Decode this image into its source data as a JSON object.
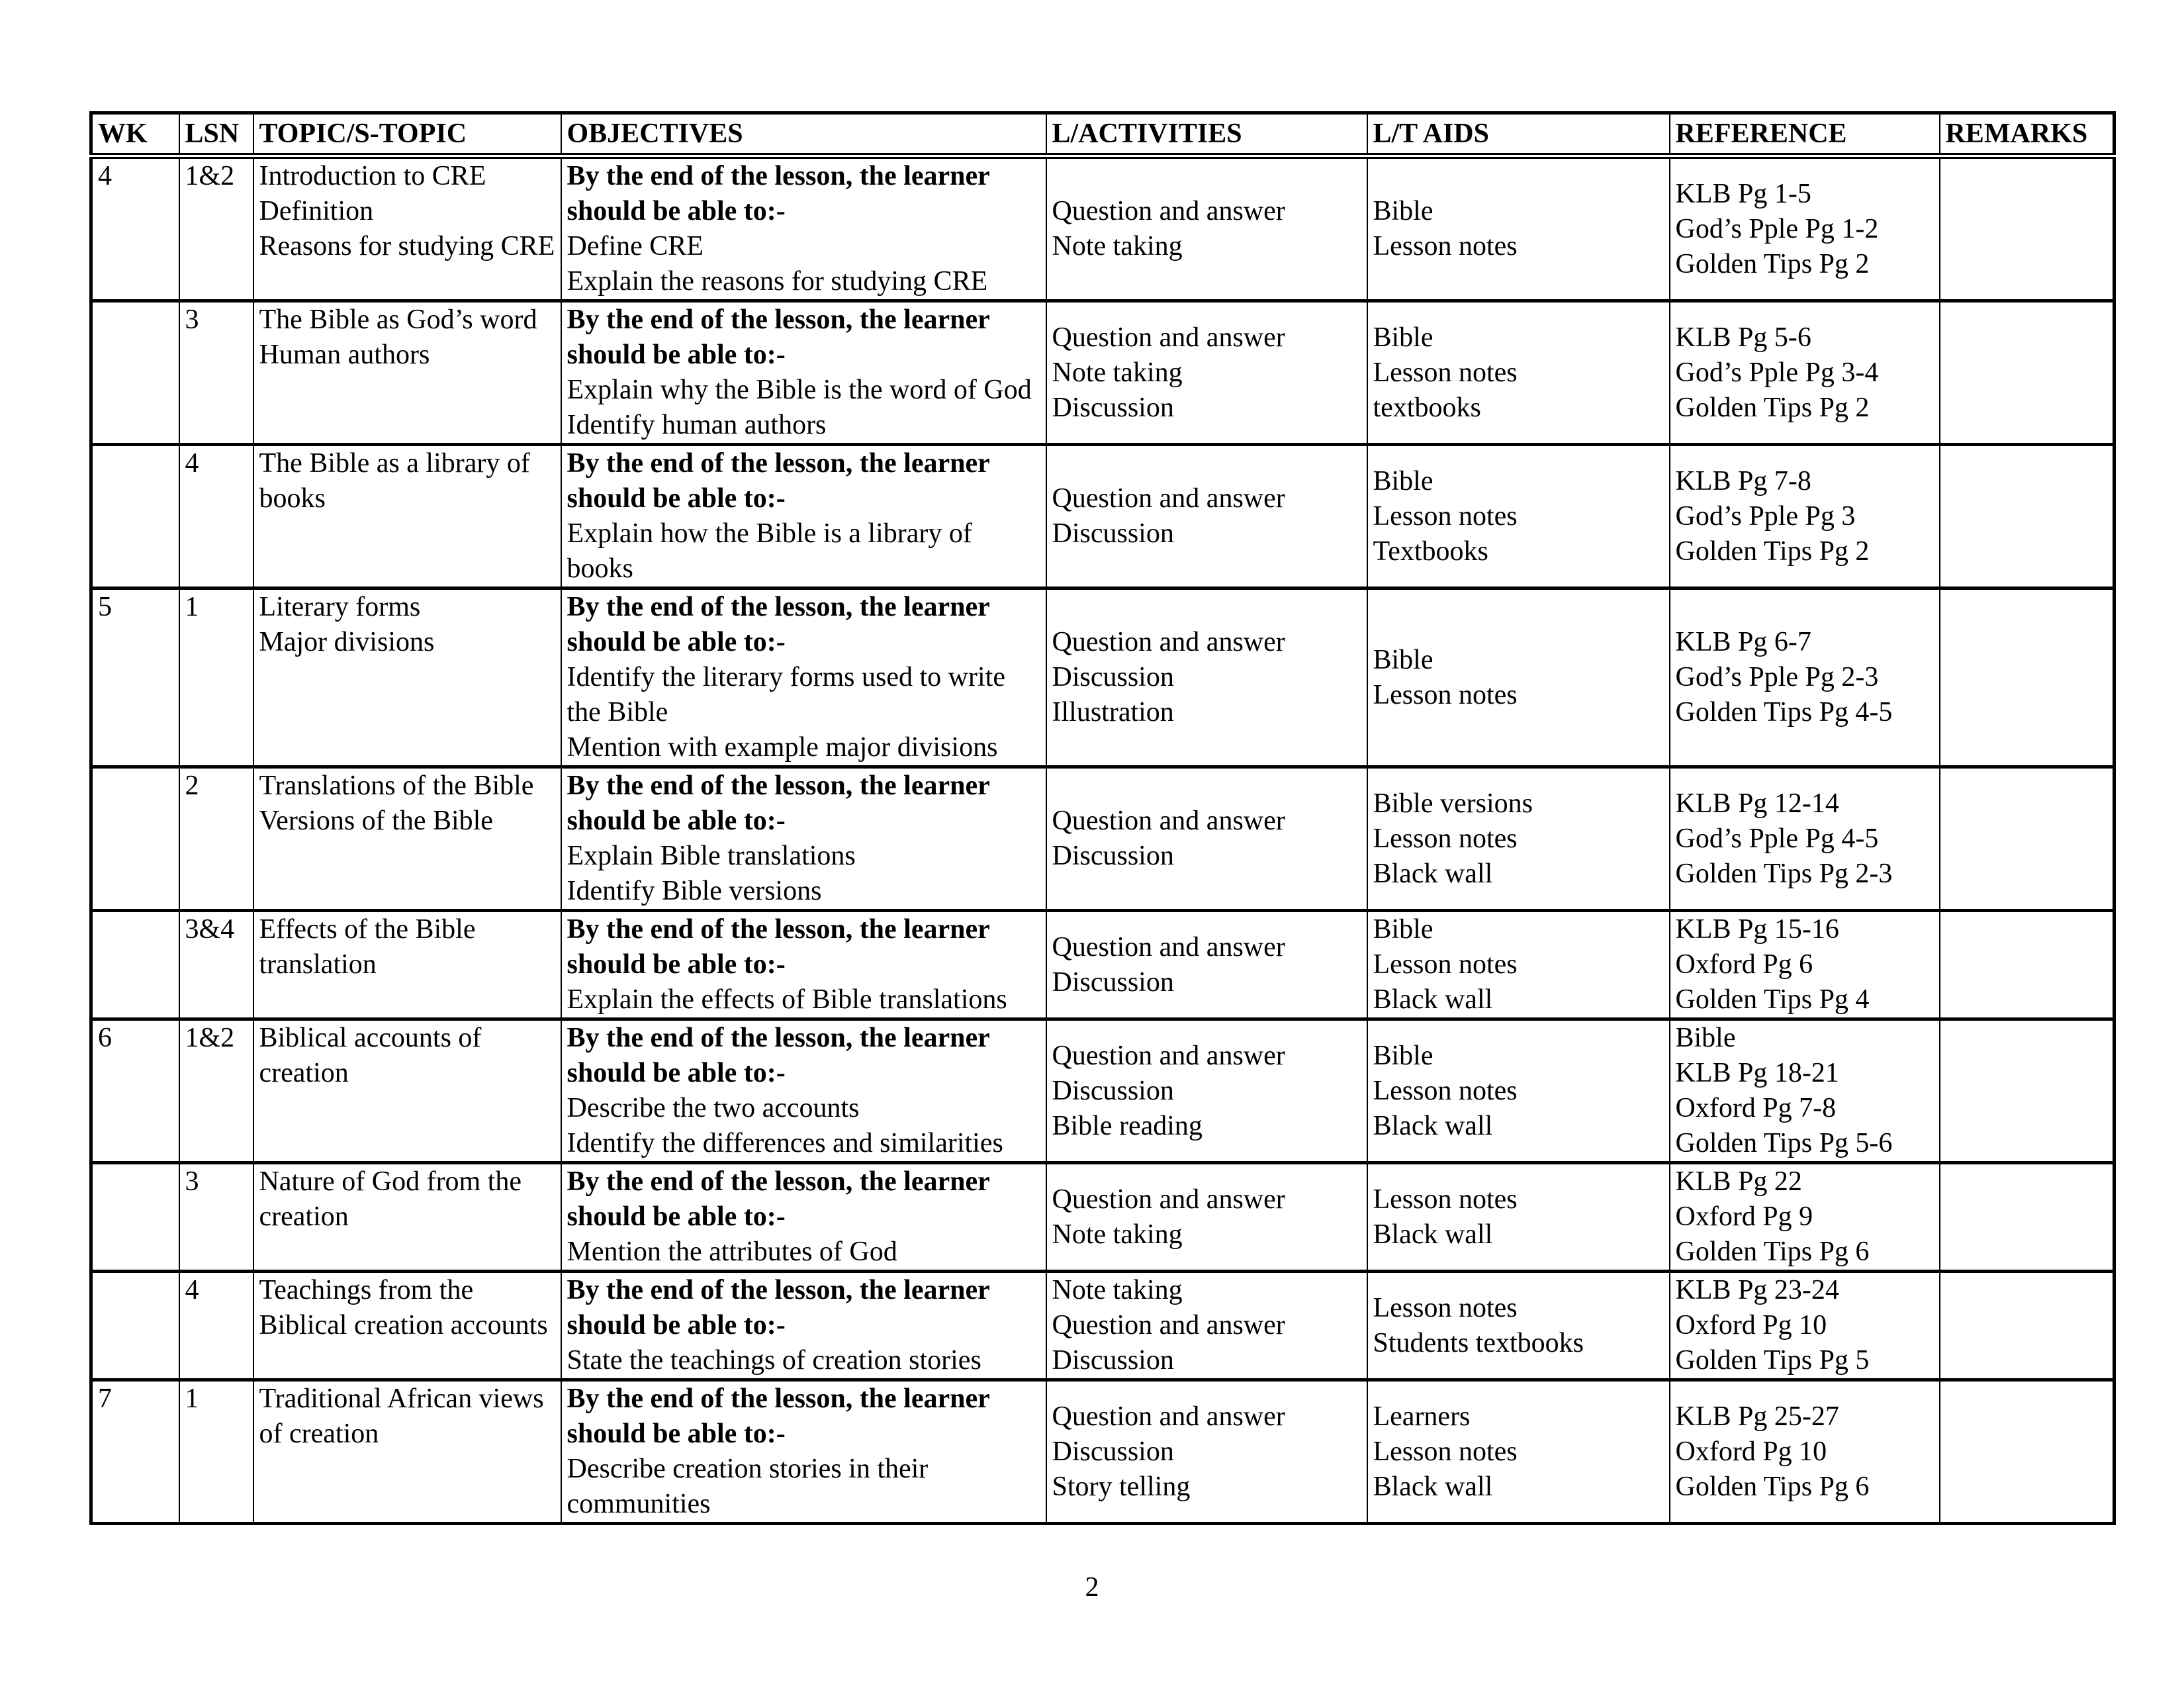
{
  "page": {
    "number": "2"
  },
  "table": {
    "headers": [
      "WK",
      "LSN",
      "TOPIC/S-TOPIC",
      "OBJECTIVES",
      "L/ACTIVITIES",
      "L/T AIDS",
      "REFERENCE",
      "REMARKS"
    ],
    "objectives_lead": "By the end of the lesson, the learner should be able to:-",
    "rows": [
      {
        "wk": "4",
        "lsn": "1&2",
        "topic": [
          "Introduction to CRE",
          "Definition",
          "Reasons for studying CRE"
        ],
        "objectives": [
          "Define CRE",
          "Explain the reasons for studying CRE"
        ],
        "activities": [
          "Question and answer",
          "Note taking"
        ],
        "aids": [
          "Bible",
          "Lesson notes"
        ],
        "reference": [
          "KLB Pg 1-5",
          "God’s Pple Pg 1-2",
          "Golden Tips Pg 2"
        ],
        "remarks": ""
      },
      {
        "wk": "",
        "lsn": "3",
        "topic": [
          "The Bible as God’s word",
          "Human authors"
        ],
        "objectives": [
          "Explain why the Bible is the word of God",
          "Identify human authors"
        ],
        "activities": [
          "Question and answer",
          "Note taking",
          "Discussion"
        ],
        "aids": [
          "Bible",
          "Lesson notes",
          "textbooks"
        ],
        "reference": [
          "KLB Pg 5-6",
          "God’s Pple Pg 3-4",
          "Golden Tips Pg 2"
        ],
        "remarks": ""
      },
      {
        "wk": "",
        "lsn": "4",
        "topic": [
          "The Bible as a library of books"
        ],
        "objectives": [
          "Explain how the Bible is a library of books"
        ],
        "activities": [
          "Question and answer",
          "Discussion"
        ],
        "aids": [
          "Bible",
          "Lesson notes",
          "Textbooks"
        ],
        "reference": [
          "KLB Pg 7-8",
          "God’s Pple Pg 3",
          "Golden Tips Pg 2"
        ],
        "remarks": ""
      },
      {
        "wk": "5",
        "lsn": "1",
        "topic": [
          "Literary forms",
          "Major divisions"
        ],
        "objectives": [
          "Identify the literary forms used to write the Bible",
          "Mention with example major divisions"
        ],
        "activities": [
          "Question and answer",
          "Discussion",
          "Illustration"
        ],
        "aids": [
          "Bible",
          "Lesson notes"
        ],
        "reference": [
          "KLB Pg 6-7",
          "God’s Pple Pg 2-3",
          "Golden Tips Pg 4-5"
        ],
        "remarks": ""
      },
      {
        "wk": "",
        "lsn": "2",
        "topic": [
          "Translations of the Bible",
          "Versions of the Bible"
        ],
        "objectives": [
          "Explain Bible translations",
          "Identify Bible versions"
        ],
        "activities": [
          "Question and answer",
          "Discussion"
        ],
        "aids": [
          "Bible versions",
          "Lesson notes",
          "Black wall"
        ],
        "reference": [
          "KLB Pg 12-14",
          "God’s Pple Pg 4-5",
          "Golden Tips Pg 2-3"
        ],
        "remarks": ""
      },
      {
        "wk": "",
        "lsn": "3&4",
        "topic": [
          "Effects of the Bible translation"
        ],
        "objectives": [
          "Explain the effects of Bible translations"
        ],
        "activities": [
          "Question and answer",
          "Discussion"
        ],
        "aids": [
          "Bible",
          "Lesson notes",
          "Black wall"
        ],
        "reference": [
          "KLB Pg 15-16",
          "Oxford Pg 6",
          "Golden Tips Pg 4"
        ],
        "remarks": ""
      },
      {
        "wk": "6",
        "lsn": "1&2",
        "topic": [
          "Biblical accounts of creation"
        ],
        "objectives": [
          "Describe the two accounts",
          "Identify the differences and similarities"
        ],
        "activities": [
          "Question and answer",
          "Discussion",
          "Bible reading"
        ],
        "aids": [
          "Bible",
          "Lesson notes",
          "Black wall"
        ],
        "reference": [
          "Bible",
          "KLB Pg 18-21",
          "Oxford Pg 7-8",
          "Golden Tips Pg 5-6"
        ],
        "remarks": ""
      },
      {
        "wk": "",
        "lsn": "3",
        "topic": [
          "Nature of God from the creation"
        ],
        "objectives": [
          "Mention the attributes of God"
        ],
        "activities": [
          "Question and answer",
          "Note taking"
        ],
        "aids": [
          "Lesson notes",
          "Black wall"
        ],
        "reference": [
          "KLB Pg 22",
          "Oxford Pg 9",
          "Golden Tips Pg 6"
        ],
        "remarks": ""
      },
      {
        "wk": "",
        "lsn": "4",
        "topic": [
          "Teachings from the Biblical creation accounts"
        ],
        "objectives": [
          "State the teachings of creation stories"
        ],
        "activities": [
          "Note taking",
          "Question and answer",
          "Discussion"
        ],
        "aids": [
          "Lesson notes",
          "Students textbooks"
        ],
        "reference": [
          "KLB Pg 23-24",
          "Oxford Pg 10",
          "Golden Tips Pg 5"
        ],
        "remarks": ""
      },
      {
        "wk": "7",
        "lsn": "1",
        "topic": [
          "Traditional African views of creation"
        ],
        "objectives": [
          "Describe creation stories in their communities"
        ],
        "activities": [
          "Question and answer",
          "Discussion",
          "Story telling"
        ],
        "aids": [
          "Learners",
          "Lesson notes",
          "Black wall"
        ],
        "reference": [
          "KLB Pg 25-27",
          "Oxford Pg 10",
          "Golden Tips Pg 6"
        ],
        "remarks": ""
      }
    ]
  }
}
